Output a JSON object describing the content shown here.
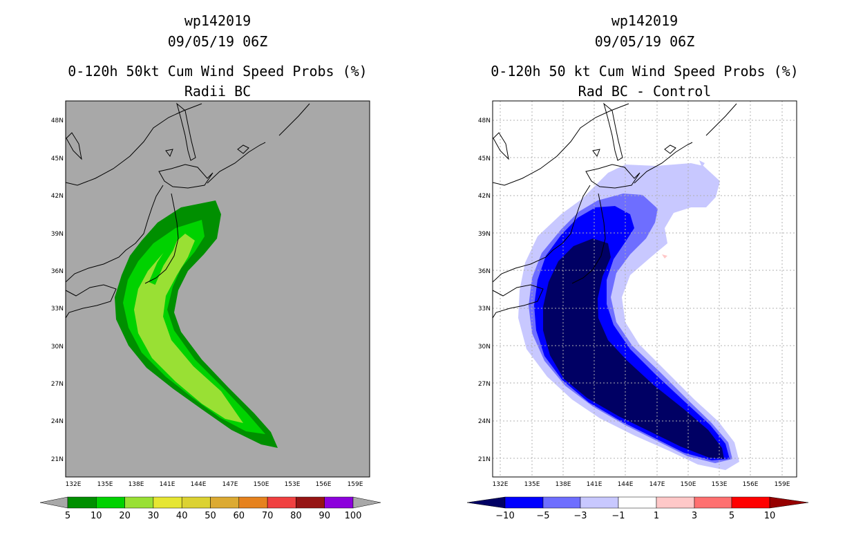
{
  "left": {
    "title1": "wp142019",
    "title2": "09/05/19 06Z",
    "title3": "0-120h 50kt Cum Wind Speed Probs (%)",
    "title4": "Radii BC",
    "lat_labels": [
      "48N",
      "45N",
      "42N",
      "39N",
      "36N",
      "33N",
      "30N",
      "27N",
      "24N",
      "21N"
    ],
    "lon_labels": [
      "132E",
      "135E",
      "138E",
      "141E",
      "144E",
      "147E",
      "150E",
      "153E",
      "156E",
      "159E"
    ],
    "colorbar": {
      "labels": [
        "5",
        "10",
        "20",
        "30",
        "40",
        "50",
        "60",
        "70",
        "80",
        "90",
        "100"
      ],
      "colors": [
        "#008f00",
        "#00d200",
        "#99e034",
        "#e6e632",
        "#dcd232",
        "#dcaa32",
        "#e6821e",
        "#f04040",
        "#961414",
        "#8c00dc"
      ]
    }
  },
  "right": {
    "title1": "wp142019",
    "title2": "09/05/19 06Z",
    "title3": "0-120h 50 kt Cum Wind Speed Probs (%)",
    "title4": "Rad BC - Control",
    "lat_labels": [
      "48N",
      "45N",
      "42N",
      "39N",
      "36N",
      "33N",
      "30N",
      "27N",
      "24N",
      "21N"
    ],
    "lon_labels": [
      "132E",
      "135E",
      "138E",
      "141E",
      "144E",
      "147E",
      "150E",
      "153E",
      "156E",
      "159E"
    ],
    "colorbar": {
      "labels": [
        "−10",
        "−5",
        "−3",
        "−1",
        "1",
        "3",
        "5",
        "10"
      ],
      "colors": [
        "#0000ff",
        "#6e6eff",
        "#c8c8ff",
        "#ffffff",
        "#ffc8c8",
        "#ff7070",
        "#ff0000"
      ],
      "low_color": "#000064",
      "high_color": "#960000"
    }
  }
}
